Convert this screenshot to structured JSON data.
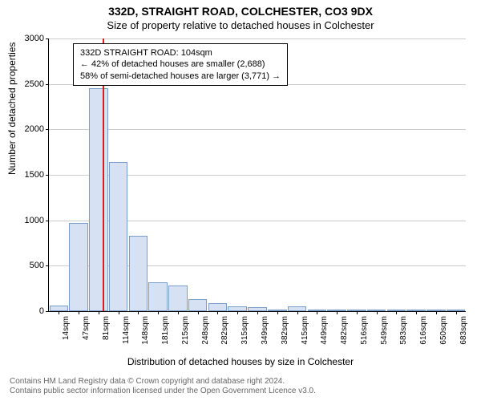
{
  "titles": {
    "line1": "332D, STRAIGHT ROAD, COLCHESTER, CO3 9DX",
    "line2": "Size of property relative to detached houses in Colchester"
  },
  "chart": {
    "type": "histogram",
    "categories": [
      "14sqm",
      "47sqm",
      "81sqm",
      "114sqm",
      "148sqm",
      "181sqm",
      "215sqm",
      "248sqm",
      "282sqm",
      "315sqm",
      "349sqm",
      "382sqm",
      "415sqm",
      "449sqm",
      "482sqm",
      "516sqm",
      "549sqm",
      "583sqm",
      "616sqm",
      "650sqm",
      "683sqm"
    ],
    "values": [
      60,
      970,
      2450,
      1640,
      830,
      320,
      280,
      130,
      90,
      55,
      40,
      20,
      50,
      10,
      10,
      8,
      5,
      3,
      3,
      2,
      2
    ],
    "bar_fill": "#d6e2f3",
    "bar_stroke": "#7a9cc6",
    "ylim": [
      0,
      3000
    ],
    "yticks": [
      0,
      500,
      1000,
      1500,
      2000,
      2500,
      3000
    ],
    "ylabel": "Number of detached properties",
    "xlabel": "Distribution of detached houses by size in Colchester",
    "grid_color": "#cccccc",
    "background": "#ffffff",
    "marker": {
      "index": 2,
      "fraction": 0.7,
      "color": "#d91c1c"
    }
  },
  "annotation": {
    "line1": "332D STRAIGHT ROAD: 104sqm",
    "line2": "← 42% of detached houses are smaller (2,688)",
    "line3": "58% of semi-detached houses are larger (3,771) →"
  },
  "footer": {
    "line1": "Contains HM Land Registry data © Crown copyright and database right 2024.",
    "line2": "Contains public sector information licensed under the Open Government Licence v3.0."
  },
  "fonts": {
    "title_size": 14,
    "subtitle_size": 13,
    "label_size": 12,
    "tick_size": 11,
    "xtick_size": 10,
    "annot_size": 11,
    "footer_size": 10
  }
}
